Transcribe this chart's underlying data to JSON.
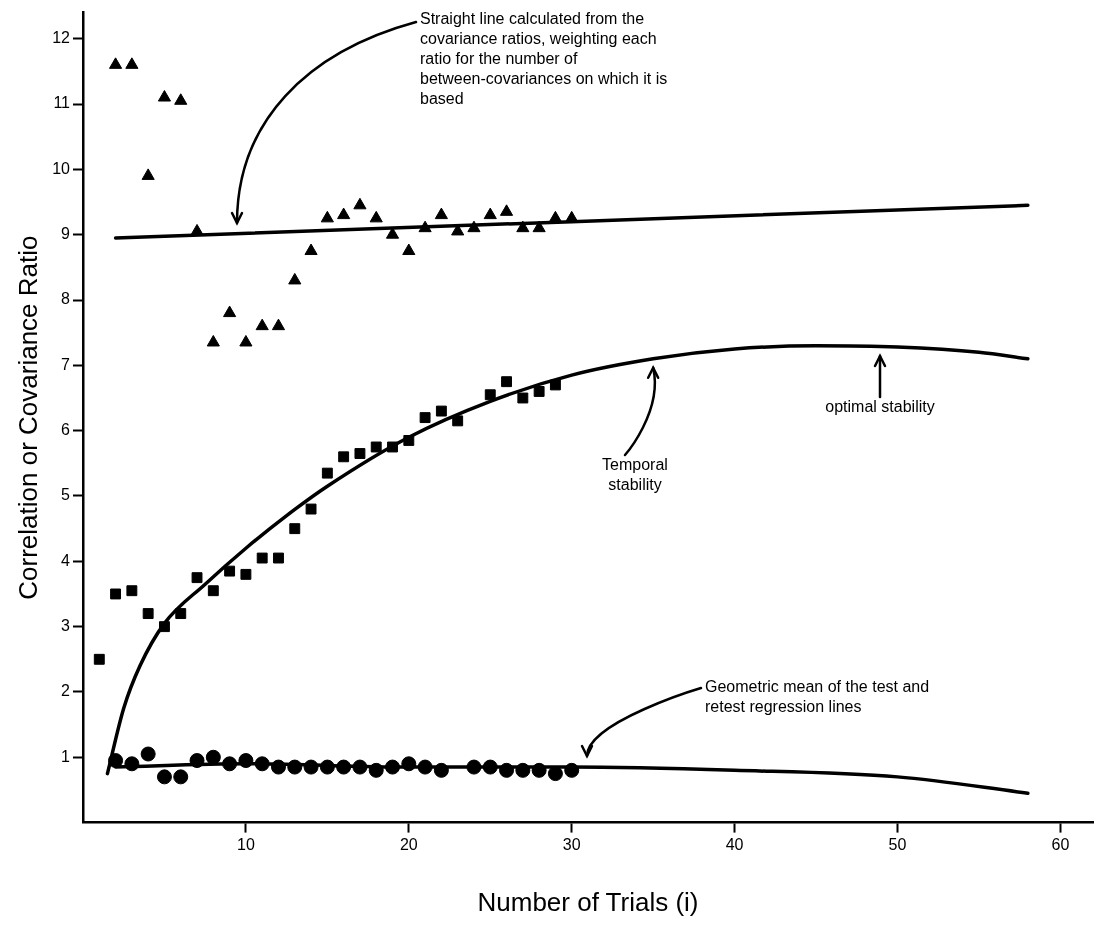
{
  "chart_data": {
    "type": "scatter",
    "xlabel": "Number of Trials (i)",
    "ylabel": "Correlation or Covariance Ratio",
    "xlim": [
      0,
      62
    ],
    "ylim": [
      0,
      12.4
    ],
    "xticks": [
      10,
      20,
      30,
      40,
      50,
      60
    ],
    "yticks": [
      1,
      2,
      3,
      4,
      5,
      6,
      7,
      8,
      9,
      10,
      11,
      12
    ],
    "grid": false,
    "legend": false,
    "series": [
      {
        "type": "scatter",
        "marker": "triangle",
        "color": "#000000",
        "x": [
          2,
          3,
          4,
          5,
          6,
          7,
          8,
          9,
          10,
          11,
          12,
          13,
          14,
          15,
          16,
          17,
          18,
          19,
          20,
          21,
          22,
          23,
          24,
          25,
          26,
          27,
          28,
          29,
          30
        ],
        "values": [
          11.6,
          11.6,
          9.9,
          11.1,
          11.05,
          9.05,
          7.35,
          7.8,
          7.35,
          7.6,
          7.6,
          8.3,
          8.75,
          9.25,
          9.3,
          9.45,
          9.25,
          9.0,
          8.75,
          9.1,
          9.3,
          9.05,
          9.1,
          9.3,
          9.35,
          9.1,
          9.1,
          9.25,
          9.25
        ]
      },
      {
        "type": "scatter",
        "marker": "square",
        "color": "#000000",
        "x": [
          1,
          2,
          3,
          4,
          5,
          6,
          7,
          8,
          9,
          10,
          11,
          12,
          13,
          14,
          15,
          16,
          17,
          18,
          19,
          20,
          21,
          22,
          23,
          25,
          26,
          27,
          28,
          29
        ],
        "values": [
          2.5,
          3.5,
          3.55,
          3.2,
          3.0,
          3.2,
          3.75,
          3.55,
          3.85,
          3.8,
          4.05,
          4.05,
          4.5,
          4.8,
          5.35,
          5.6,
          5.65,
          5.75,
          5.75,
          5.85,
          6.2,
          6.3,
          6.15,
          6.55,
          6.75,
          6.5,
          6.6,
          6.7
        ]
      },
      {
        "type": "scatter",
        "marker": "circle",
        "color": "#000000",
        "x": [
          2,
          3,
          4,
          5,
          6,
          7,
          8,
          9,
          10,
          11,
          12,
          13,
          14,
          15,
          16,
          17,
          18,
          19,
          20,
          21,
          22,
          24,
          25,
          26,
          27,
          28,
          29,
          30
        ],
        "values": [
          0.95,
          0.9,
          1.05,
          0.7,
          0.7,
          0.95,
          1.0,
          0.9,
          0.95,
          0.9,
          0.85,
          0.85,
          0.85,
          0.85,
          0.85,
          0.85,
          0.8,
          0.85,
          0.9,
          0.85,
          0.8,
          0.85,
          0.85,
          0.8,
          0.8,
          0.8,
          0.75,
          0.8
        ]
      },
      {
        "type": "line",
        "marker": "none",
        "line_style": "solid",
        "color": "#000000",
        "x": [
          2,
          58
        ],
        "values": [
          8.95,
          9.45
        ]
      },
      {
        "type": "line",
        "marker": "none",
        "line_style": "solid",
        "color": "#000000",
        "x": [
          1.5,
          2.5,
          3.5,
          5,
          7.5,
          10,
          12.5,
          15,
          20,
          25,
          30,
          35,
          40,
          45,
          50,
          55,
          58
        ],
        "values": [
          0.75,
          1.75,
          2.4,
          3.05,
          3.65,
          4.2,
          4.7,
          5.15,
          5.9,
          6.45,
          6.85,
          7.1,
          7.25,
          7.3,
          7.28,
          7.2,
          7.1
        ]
      },
      {
        "type": "line",
        "marker": "none",
        "line_style": "solid",
        "color": "#000000",
        "x": [
          2,
          10,
          20,
          30,
          40,
          50,
          58
        ],
        "values": [
          0.85,
          0.9,
          0.85,
          0.85,
          0.8,
          0.7,
          0.45
        ]
      }
    ],
    "annotations": [
      {
        "text": "Straight line calculated from the covariance ratios, weighting each ratio for the number of between-covariances on which it is based"
      },
      {
        "text": "Temporal stability",
        "x": 35,
        "y": 7.1
      },
      "optimal stability",
      "Geometric mean of the test and retest regression lines"
    ]
  }
}
